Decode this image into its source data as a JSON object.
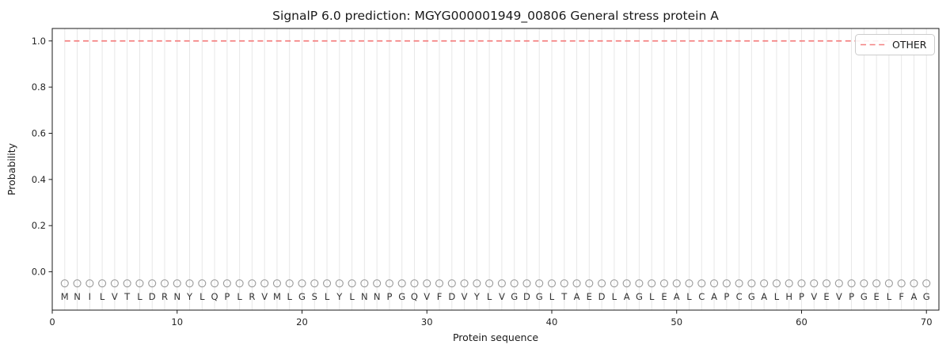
{
  "chart_data": {
    "type": "line",
    "title": "SignalP 6.0 prediction: MGYG000001949_00806 General stress protein A",
    "xlabel": "Protein sequence",
    "ylabel": "Probability",
    "legend": {
      "position": "upper right",
      "entries": [
        {
          "label": "OTHER",
          "color": "#f48080",
          "style": "dashed"
        }
      ]
    },
    "x": [
      1,
      2,
      3,
      4,
      5,
      6,
      7,
      8,
      9,
      10,
      11,
      12,
      13,
      14,
      15,
      16,
      17,
      18,
      19,
      20,
      21,
      22,
      23,
      24,
      25,
      26,
      27,
      28,
      29,
      30,
      31,
      32,
      33,
      34,
      35,
      36,
      37,
      38,
      39,
      40,
      41,
      42,
      43,
      44,
      45,
      46,
      47,
      48,
      49,
      50,
      51,
      52,
      53,
      54,
      55,
      56,
      57,
      58,
      59,
      60,
      61,
      62,
      63,
      64,
      65,
      66,
      67,
      68,
      69,
      70
    ],
    "series": [
      {
        "name": "OTHER",
        "color": "#f48080",
        "style": "dashed",
        "values": [
          1.0,
          1.0,
          1.0,
          1.0,
          1.0,
          1.0,
          1.0,
          1.0,
          1.0,
          1.0,
          1.0,
          1.0,
          1.0,
          1.0,
          1.0,
          1.0,
          1.0,
          1.0,
          1.0,
          1.0,
          1.0,
          1.0,
          1.0,
          1.0,
          1.0,
          1.0,
          1.0,
          1.0,
          1.0,
          1.0,
          1.0,
          1.0,
          1.0,
          1.0,
          1.0,
          1.0,
          1.0,
          1.0,
          1.0,
          1.0,
          1.0,
          1.0,
          1.0,
          1.0,
          1.0,
          1.0,
          1.0,
          1.0,
          1.0,
          1.0,
          1.0,
          1.0,
          1.0,
          1.0,
          1.0,
          1.0,
          1.0,
          1.0,
          1.0,
          1.0,
          1.0,
          1.0,
          1.0,
          1.0,
          1.0,
          1.0,
          1.0,
          1.0,
          1.0,
          1.0
        ]
      }
    ],
    "sequence": [
      "M",
      "N",
      "I",
      "L",
      "V",
      "T",
      "L",
      "D",
      "R",
      "N",
      "Y",
      "L",
      "Q",
      "P",
      "L",
      "R",
      "V",
      "M",
      "L",
      "G",
      "S",
      "L",
      "Y",
      "L",
      "N",
      "N",
      "P",
      "G",
      "Q",
      "V",
      "F",
      "D",
      "V",
      "Y",
      "L",
      "V",
      "G",
      "D",
      "G",
      "L",
      "T",
      "A",
      "E",
      "D",
      "L",
      "A",
      "G",
      "L",
      "E",
      "A",
      "L",
      "C",
      "A",
      "P",
      "C",
      "G",
      "A",
      "L",
      "H",
      "P",
      "V",
      "E",
      "V",
      "P",
      "G",
      "E",
      "L",
      "F",
      "A",
      "G"
    ],
    "sequence_marker": {
      "symbol": "circle-outline",
      "y": -0.05,
      "letters_y": -0.107,
      "color": "#9c9c9c"
    },
    "xticks": [
      0,
      10,
      20,
      30,
      40,
      50,
      60,
      70
    ],
    "yticks": [
      "0.0",
      "0.2",
      "0.4",
      "0.6",
      "0.8",
      "1.0"
    ],
    "xlim": [
      0,
      71
    ],
    "ylim": [
      -0.166,
      1.054
    ],
    "grid": {
      "vertical_per_residue": true,
      "horizontal": false,
      "color": "#e7e7e7"
    },
    "colors": {
      "axis": "#1a1a1a",
      "tick_text": "#262626",
      "letter_text": "#333333"
    }
  }
}
